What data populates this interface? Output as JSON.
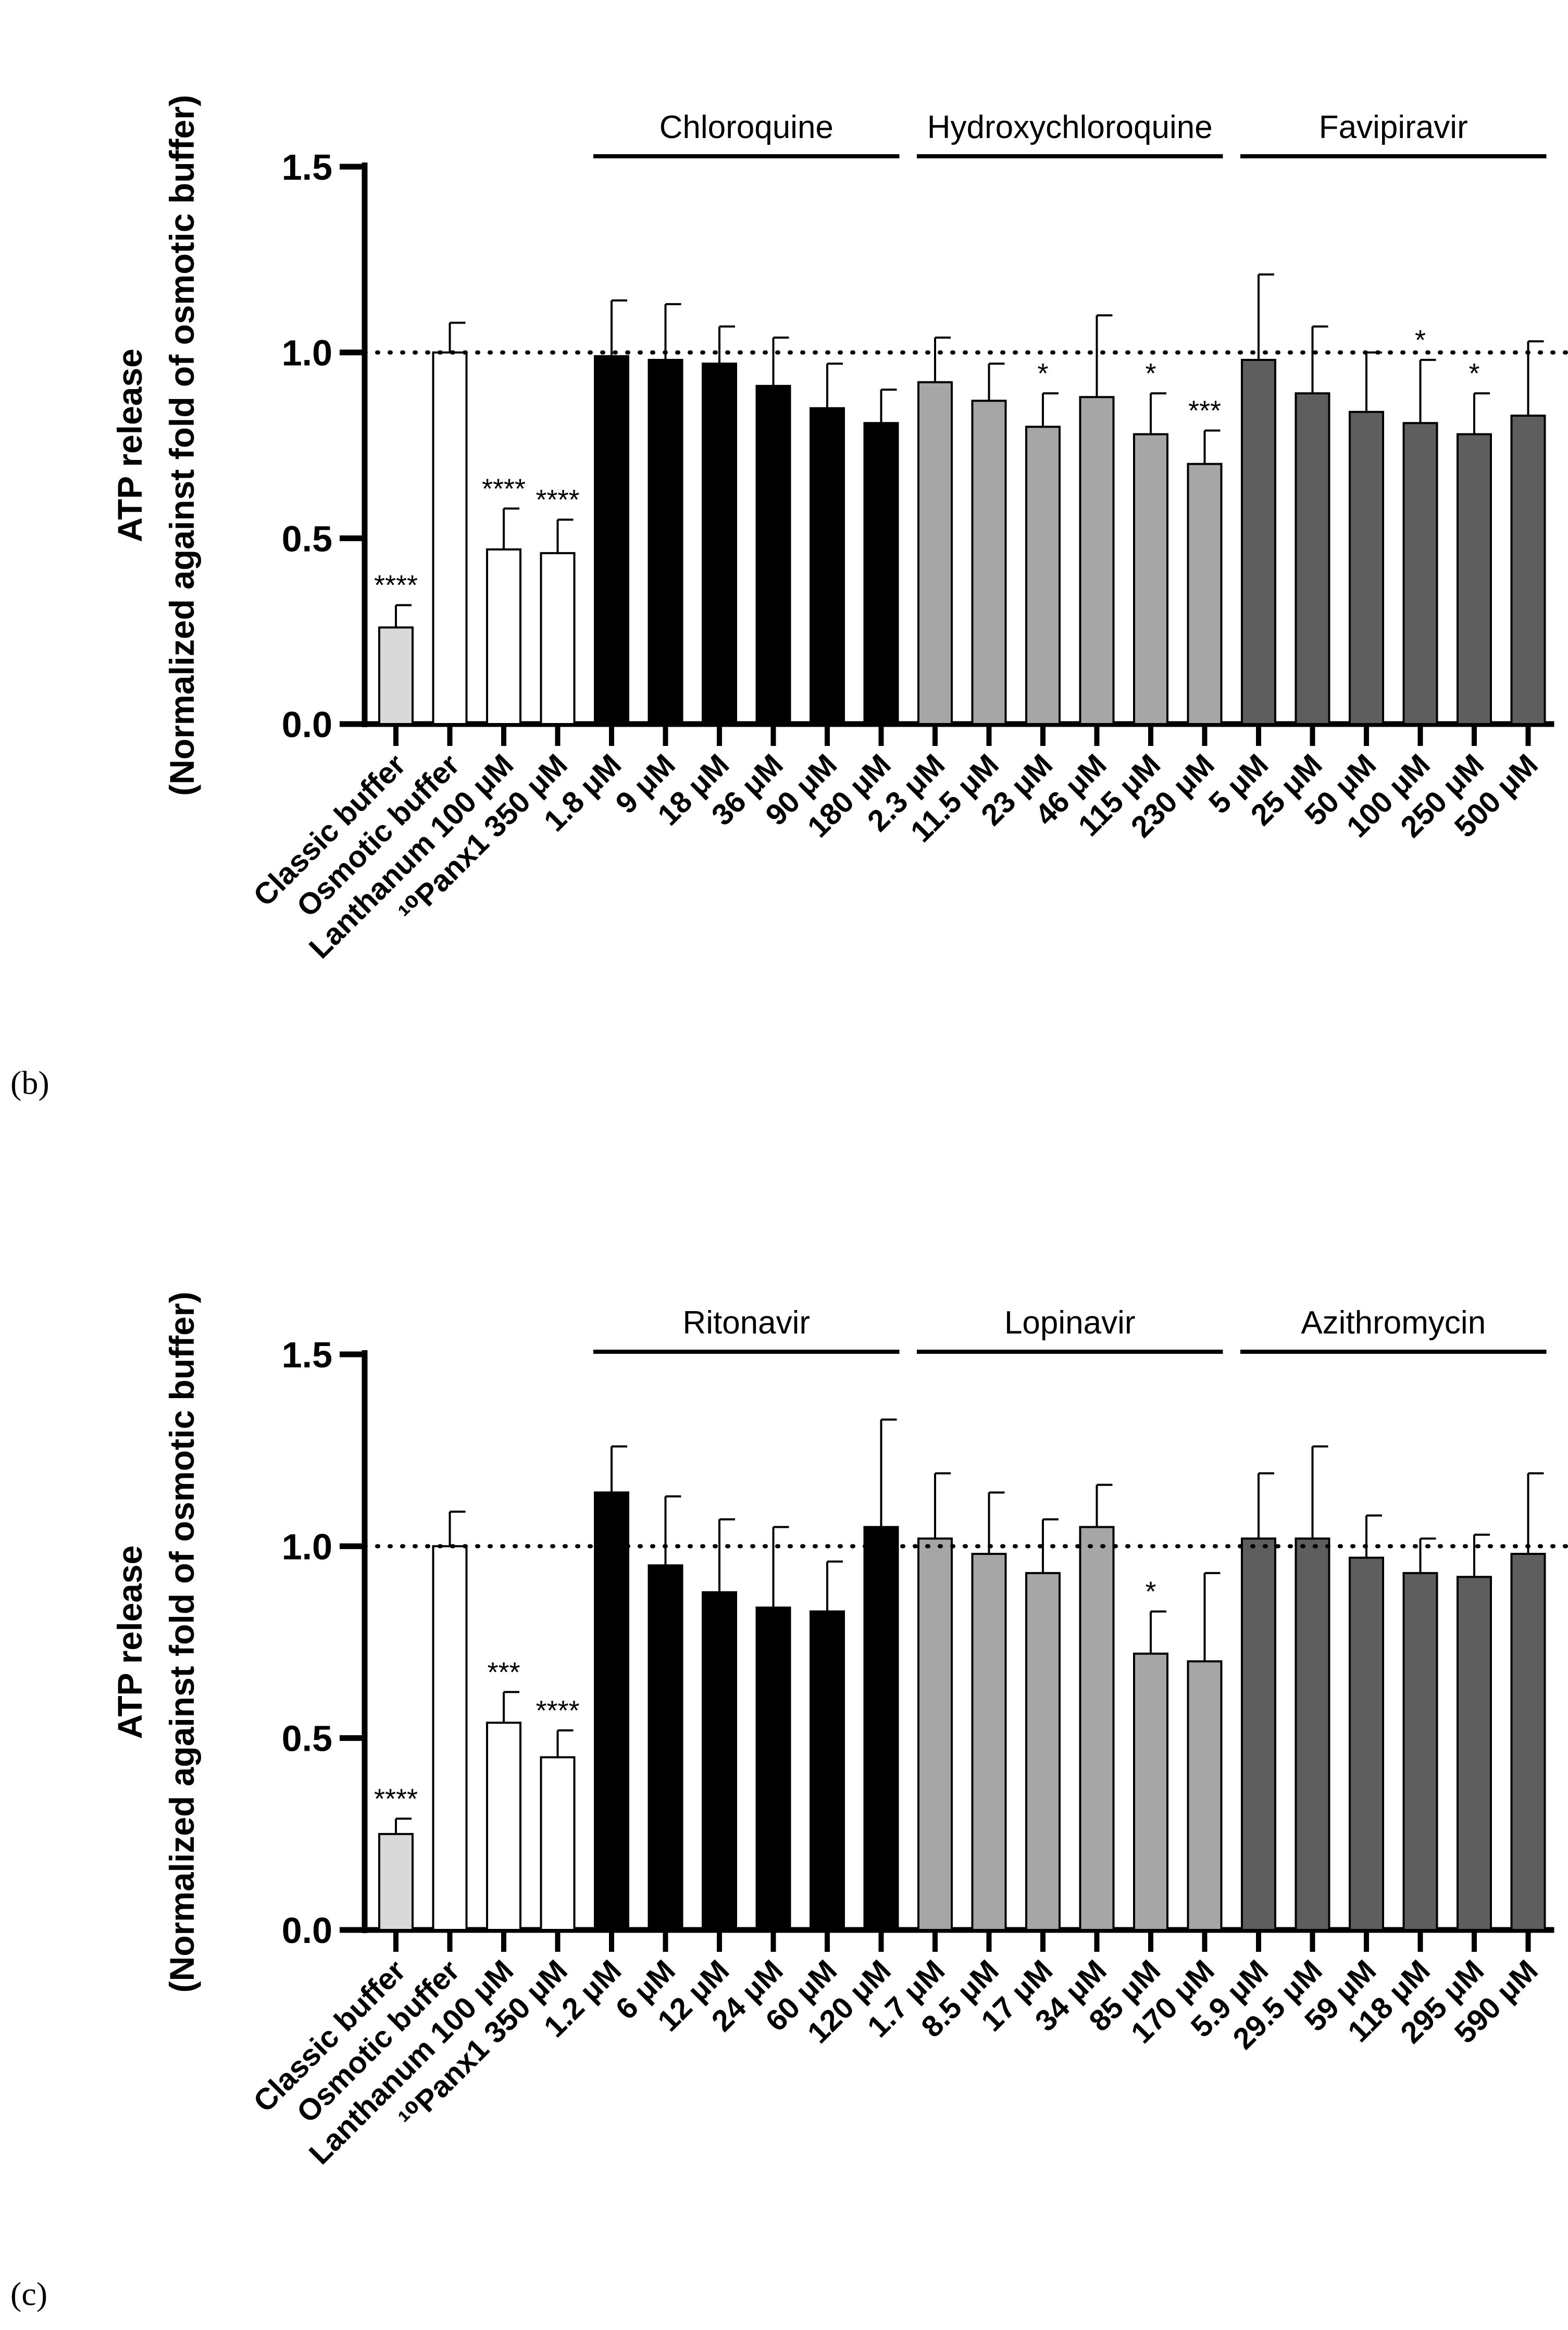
{
  "figure": {
    "panels": [
      {
        "label": "(b)"
      },
      {
        "label": "(c)"
      }
    ]
  },
  "chart_data": [
    {
      "type": "bar",
      "panel": "(b)",
      "ylabel": "ATP release",
      "ylabel2": "(Normalized against fold of osmotic buffer)",
      "ylim": [
        0,
        1.5
      ],
      "yticks": [
        "0.0",
        "0.5",
        "1.0",
        "1.5"
      ],
      "reference_line": 1.0,
      "categories": [
        "Classic buffer",
        "Osmotic buffer",
        "Lanthanum 100 μM",
        "¹⁰Panx1 350 μM",
        "1.8 μM",
        "9 μM",
        "18 μM",
        "36 μM",
        "90 μM",
        "180 μM",
        "2.3 μM",
        "11.5 μM",
        "23 μM",
        "46 μM",
        "115 μM",
        "230 μM",
        "5 μM",
        "25 μM",
        "50 μM",
        "100 μM",
        "250 μM",
        "500 μM"
      ],
      "values": [
        0.26,
        1.0,
        0.47,
        0.46,
        0.99,
        0.98,
        0.97,
        0.91,
        0.85,
        0.81,
        0.92,
        0.87,
        0.8,
        0.88,
        0.78,
        0.7,
        0.98,
        0.89,
        0.84,
        0.81,
        0.78,
        0.83
      ],
      "errors": [
        0.06,
        0.08,
        0.11,
        0.09,
        0.15,
        0.15,
        0.1,
        0.13,
        0.12,
        0.09,
        0.12,
        0.1,
        0.09,
        0.22,
        0.11,
        0.09,
        0.23,
        0.18,
        0.16,
        0.17,
        0.11,
        0.2
      ],
      "fills": [
        "#d9d9d9",
        "#ffffff",
        "#ffffff",
        "#ffffff",
        "#000000",
        "#000000",
        "#000000",
        "#000000",
        "#000000",
        "#000000",
        "#a6a6a6",
        "#a6a6a6",
        "#a6a6a6",
        "#a6a6a6",
        "#a6a6a6",
        "#a6a6a6",
        "#5e5e5e",
        "#5e5e5e",
        "#5e5e5e",
        "#5e5e5e",
        "#5e5e5e",
        "#5e5e5e"
      ],
      "significance": [
        "****",
        "",
        "****",
        "****",
        "",
        "",
        "",
        "",
        "",
        "",
        "",
        "",
        "*",
        "",
        "*",
        "***",
        "",
        "",
        "",
        "*",
        "*",
        ""
      ],
      "groups": [
        {
          "name": "Chloroquine",
          "from": 4,
          "to": 9
        },
        {
          "name": "Hydroxychloroquine",
          "from": 10,
          "to": 15
        },
        {
          "name": "Favipiravir",
          "from": 16,
          "to": 21
        }
      ]
    },
    {
      "type": "bar",
      "panel": "(c)",
      "ylabel": "ATP release",
      "ylabel2": "(Normalized against fold of osmotic buffer)",
      "ylim": [
        0,
        1.5
      ],
      "yticks": [
        "0.0",
        "0.5",
        "1.0",
        "1.5"
      ],
      "reference_line": 1.0,
      "categories": [
        "Classic buffer",
        "Osmotic buffer",
        "Lanthanum 100 μM",
        "¹⁰Panx1 350 μM",
        "1.2 μM",
        "6 μM",
        "12 μM",
        "24 μM",
        "60 μM",
        "120 μM",
        "1.7 μM",
        "8.5 μM",
        "17 μM",
        "34 μM",
        "85 μM",
        "170 μM",
        "5.9 μM",
        "29.5 μM",
        "59 μM",
        "118 μM",
        "295 μM",
        "590 μM"
      ],
      "values": [
        0.25,
        1.0,
        0.54,
        0.45,
        1.14,
        0.95,
        0.88,
        0.84,
        0.83,
        1.05,
        1.02,
        0.98,
        0.93,
        1.05,
        0.72,
        0.7,
        1.02,
        1.02,
        0.97,
        0.93,
        0.92,
        0.98
      ],
      "errors": [
        0.04,
        0.09,
        0.08,
        0.07,
        0.12,
        0.18,
        0.19,
        0.21,
        0.13,
        0.28,
        0.17,
        0.16,
        0.14,
        0.11,
        0.11,
        0.23,
        0.17,
        0.24,
        0.11,
        0.09,
        0.11,
        0.21
      ],
      "fills": [
        "#d9d9d9",
        "#ffffff",
        "#ffffff",
        "#ffffff",
        "#000000",
        "#000000",
        "#000000",
        "#000000",
        "#000000",
        "#000000",
        "#a6a6a6",
        "#a6a6a6",
        "#a6a6a6",
        "#a6a6a6",
        "#a6a6a6",
        "#a6a6a6",
        "#5e5e5e",
        "#5e5e5e",
        "#5e5e5e",
        "#5e5e5e",
        "#5e5e5e",
        "#5e5e5e"
      ],
      "significance": [
        "****",
        "",
        "***",
        "****",
        "",
        "",
        "",
        "",
        "",
        "",
        "",
        "",
        "",
        "",
        "*",
        "",
        "",
        "",
        "",
        "",
        "",
        ""
      ],
      "groups": [
        {
          "name": "Ritonavir",
          "from": 4,
          "to": 9
        },
        {
          "name": "Lopinavir",
          "from": 10,
          "to": 15
        },
        {
          "name": "Azithromycin",
          "from": 16,
          "to": 21
        }
      ]
    }
  ]
}
